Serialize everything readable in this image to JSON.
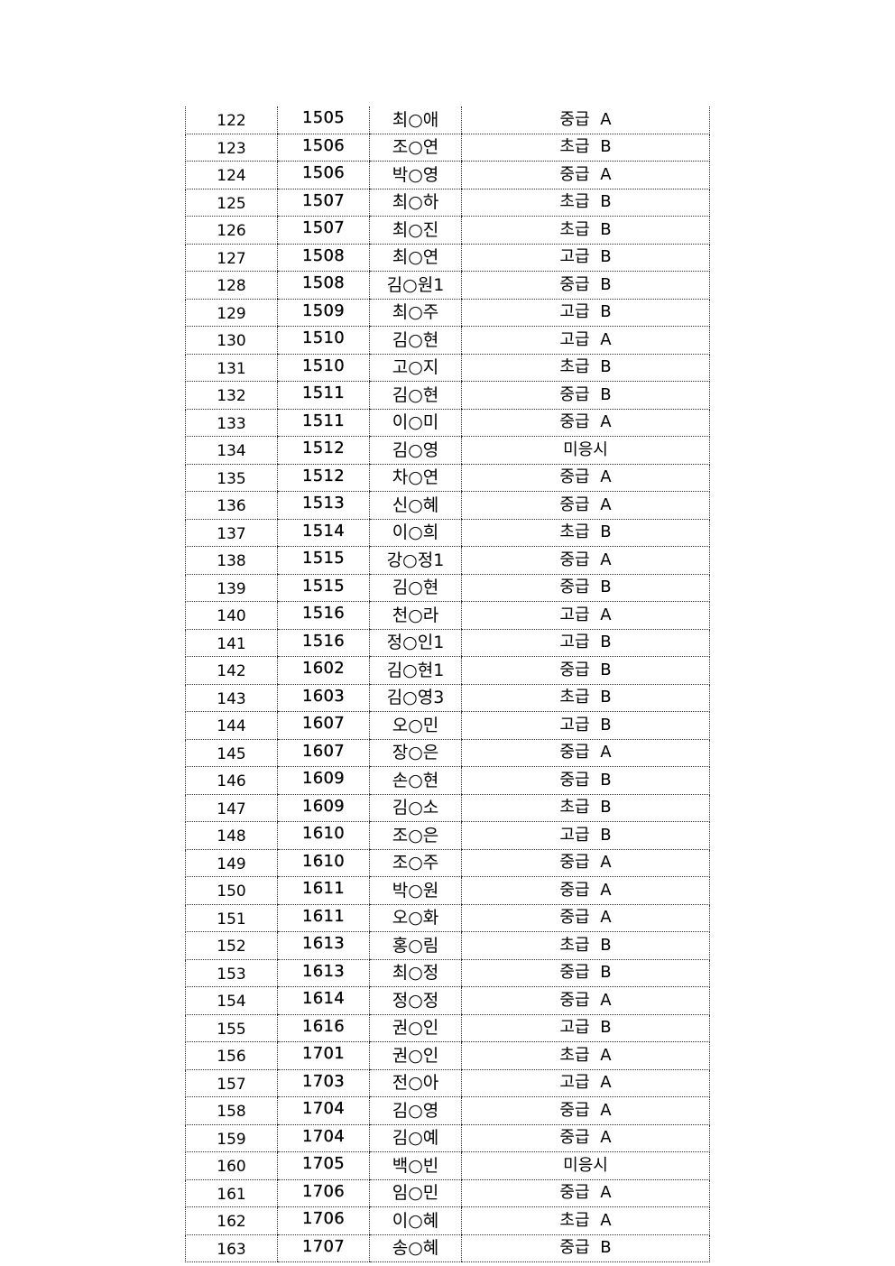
{
  "table": {
    "rows": [
      [
        "122",
        "1505",
        "최○애",
        "중급 A"
      ],
      [
        "123",
        "1506",
        "조○연",
        "초급 B"
      ],
      [
        "124",
        "1506",
        "박○영",
        "중급 A"
      ],
      [
        "125",
        "1507",
        "최○하",
        "초급 B"
      ],
      [
        "126",
        "1507",
        "최○진",
        "초급 B"
      ],
      [
        "127",
        "1508",
        "최○연",
        "고급 B"
      ],
      [
        "128",
        "1508",
        "김○원1",
        "중급 B"
      ],
      [
        "129",
        "1509",
        "최○주",
        "고급 B"
      ],
      [
        "130",
        "1510",
        "김○현",
        "고급 A"
      ],
      [
        "131",
        "1510",
        "고○지",
        "초급 B"
      ],
      [
        "132",
        "1511",
        "김○현",
        "중급 B"
      ],
      [
        "133",
        "1511",
        "이○미",
        "중급 A"
      ],
      [
        "134",
        "1512",
        "김○영",
        "미응시"
      ],
      [
        "135",
        "1512",
        "차○연",
        "중급 A"
      ],
      [
        "136",
        "1513",
        "신○혜",
        "중급 A"
      ],
      [
        "137",
        "1514",
        "이○희",
        "초급 B"
      ],
      [
        "138",
        "1515",
        "강○정1",
        "중급 A"
      ],
      [
        "139",
        "1515",
        "김○현",
        "중급 B"
      ],
      [
        "140",
        "1516",
        "천○라",
        "고급 A"
      ],
      [
        "141",
        "1516",
        "정○인1",
        "고급 B"
      ],
      [
        "142",
        "1602",
        "김○현1",
        "중급 B"
      ],
      [
        "143",
        "1603",
        "김○영3",
        "초급 B"
      ],
      [
        "144",
        "1607",
        "오○민",
        "고급 B"
      ],
      [
        "145",
        "1607",
        "장○은",
        "중급 A"
      ],
      [
        "146",
        "1609",
        "손○현",
        "중급 B"
      ],
      [
        "147",
        "1609",
        "김○소",
        "초급 B"
      ],
      [
        "148",
        "1610",
        "조○은",
        "고급 B"
      ],
      [
        "149",
        "1610",
        "조○주",
        "중급 A"
      ],
      [
        "150",
        "1611",
        "박○원",
        "중급 A"
      ],
      [
        "151",
        "1611",
        "오○화",
        "중급 A"
      ],
      [
        "152",
        "1613",
        "홍○림",
        "초급 B"
      ],
      [
        "153",
        "1613",
        "최○정",
        "중급 B"
      ],
      [
        "154",
        "1614",
        "정○정",
        "중급 A"
      ],
      [
        "155",
        "1616",
        "권○인",
        "고급 B"
      ],
      [
        "156",
        "1701",
        "권○인",
        "초급 A"
      ],
      [
        "157",
        "1703",
        "전○아",
        "고급 A"
      ],
      [
        "158",
        "1704",
        "김○영",
        "중급 A"
      ],
      [
        "159",
        "1704",
        "김○예",
        "중급 A"
      ],
      [
        "160",
        "1705",
        "백○빈",
        "미응시"
      ],
      [
        "161",
        "1706",
        "임○민",
        "중급 A"
      ],
      [
        "162",
        "1706",
        "이○혜",
        "초급 A"
      ],
      [
        "163",
        "1707",
        "송○혜",
        "중급 B"
      ]
    ]
  }
}
